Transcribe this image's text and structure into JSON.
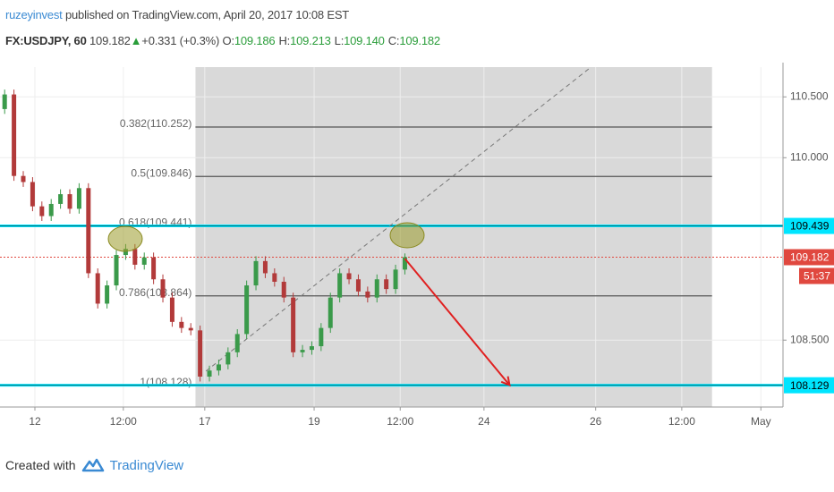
{
  "header": {
    "author": "ruzeyinvest",
    "published": "published on TradingView.com, April 20, 2017 10:08 EST",
    "symbol": "FX:USDJPY, 60",
    "last": "109.182",
    "arrow": "▲",
    "change": "+0.331 (+0.3%)",
    "ohlc": [
      {
        "label": "O:",
        "value": "109.186"
      },
      {
        "label": "H:",
        "value": "109.213"
      },
      {
        "label": "L:",
        "value": "109.140"
      },
      {
        "label": "C:",
        "value": "109.182"
      }
    ]
  },
  "chart_data": {
    "type": "candlestick",
    "x": [
      2,
      6,
      10,
      14,
      18,
      22,
      26,
      30,
      34,
      38,
      42,
      46,
      50,
      54,
      58,
      62,
      66,
      70,
      74,
      78,
      82,
      86,
      90,
      94,
      98,
      102,
      106,
      110,
      114,
      118,
      122,
      126,
      130,
      134,
      138,
      142,
      146,
      150,
      154,
      158,
      162,
      166,
      170,
      174
    ],
    "open": [
      110.4,
      110.52,
      109.85,
      109.8,
      109.6,
      109.52,
      109.62,
      109.7,
      109.58,
      109.75,
      109.05,
      108.8,
      108.95,
      109.2,
      109.25,
      109.12,
      109.18,
      109.0,
      108.85,
      108.65,
      108.6,
      108.58,
      108.2,
      108.25,
      108.3,
      108.4,
      108.55,
      108.95,
      109.15,
      109.05,
      108.98,
      108.85,
      108.4,
      108.42,
      108.45,
      108.6,
      108.85,
      109.05,
      109.0,
      108.9,
      108.85,
      109.0,
      108.92,
      109.08
    ],
    "high": [
      110.56,
      110.56,
      109.89,
      109.84,
      109.64,
      109.66,
      109.74,
      109.74,
      109.79,
      109.79,
      109.09,
      108.99,
      109.24,
      109.29,
      109.29,
      109.22,
      109.22,
      109.04,
      108.89,
      108.69,
      108.64,
      108.62,
      108.29,
      108.34,
      108.44,
      108.59,
      108.99,
      109.19,
      109.19,
      109.09,
      109.02,
      108.89,
      108.46,
      108.49,
      108.64,
      108.89,
      109.09,
      109.09,
      109.04,
      108.94,
      109.04,
      109.04,
      109.12,
      109.213
    ],
    "low": [
      110.36,
      109.81,
      109.76,
      109.56,
      109.48,
      109.48,
      109.58,
      109.54,
      109.54,
      109.01,
      108.76,
      108.76,
      108.91,
      109.16,
      109.08,
      109.08,
      108.96,
      108.81,
      108.61,
      108.56,
      108.54,
      108.16,
      108.16,
      108.21,
      108.26,
      108.36,
      108.51,
      108.91,
      109.01,
      108.94,
      108.81,
      108.36,
      108.36,
      108.38,
      108.41,
      108.56,
      108.81,
      108.96,
      108.86,
      108.81,
      108.81,
      108.88,
      108.88,
      109.04
    ],
    "close": [
      110.52,
      109.85,
      109.8,
      109.6,
      109.52,
      109.62,
      109.7,
      109.58,
      109.75,
      109.05,
      108.8,
      108.95,
      109.2,
      109.25,
      109.12,
      109.18,
      109.0,
      108.85,
      108.65,
      108.6,
      108.58,
      108.2,
      108.25,
      108.3,
      108.4,
      108.55,
      108.95,
      109.15,
      109.05,
      108.98,
      108.85,
      108.4,
      108.42,
      108.45,
      108.6,
      108.85,
      109.05,
      109.0,
      108.9,
      108.85,
      109.0,
      108.92,
      109.08,
      109.182
    ],
    "up_color": "#3a9a4a",
    "down_color": "#b23a3a",
    "xlim": [
      0,
      336.5
    ],
    "ylim": [
      107.95,
      110.745
    ],
    "xticks": [
      {
        "value": 15,
        "label": "12"
      },
      {
        "value": 53,
        "label": "12:00"
      },
      {
        "value": 88,
        "label": "17"
      },
      {
        "value": 135,
        "label": "19"
      },
      {
        "value": 172,
        "label": "12:00"
      },
      {
        "value": 208,
        "label": "24"
      },
      {
        "value": 256,
        "label": "26"
      },
      {
        "value": 293,
        "label": "12:00"
      },
      {
        "value": 327,
        "label": "May"
      }
    ],
    "yticks": [
      {
        "value": 110.5,
        "label": "110.500"
      },
      {
        "value": 110.0,
        "label": "110.000"
      },
      {
        "value": 108.5,
        "label": "108.500"
      }
    ],
    "grid": true,
    "fib": {
      "x": [
        84,
        306
      ],
      "levels": [
        {
          "value": 110.252,
          "label": "0.382(110.252)"
        },
        {
          "value": 109.846,
          "label": "0.5(109.846)"
        },
        {
          "value": 109.441,
          "label": "0.618(109.441)"
        },
        {
          "value": 108.864,
          "label": "0.786(108.864)"
        },
        {
          "value": 108.128,
          "label": "1(108.128)"
        }
      ]
    },
    "price_lines": [
      {
        "value": 109.439,
        "color": "#00e5ff"
      },
      {
        "value": 108.129,
        "color": "#00e5ff"
      }
    ],
    "last_price": {
      "value": 109.182,
      "countdown": "51:37",
      "color": "#e0483f"
    },
    "trend_line": {
      "x": [
        88.5,
        254
      ],
      "y": [
        108.245,
        110.745
      ]
    },
    "arrow": {
      "x": [
        174,
        219
      ],
      "y": [
        109.17,
        108.13
      ],
      "color": "#e02020"
    }
  },
  "footer": {
    "created": "Created with",
    "brand": "TradingView"
  }
}
